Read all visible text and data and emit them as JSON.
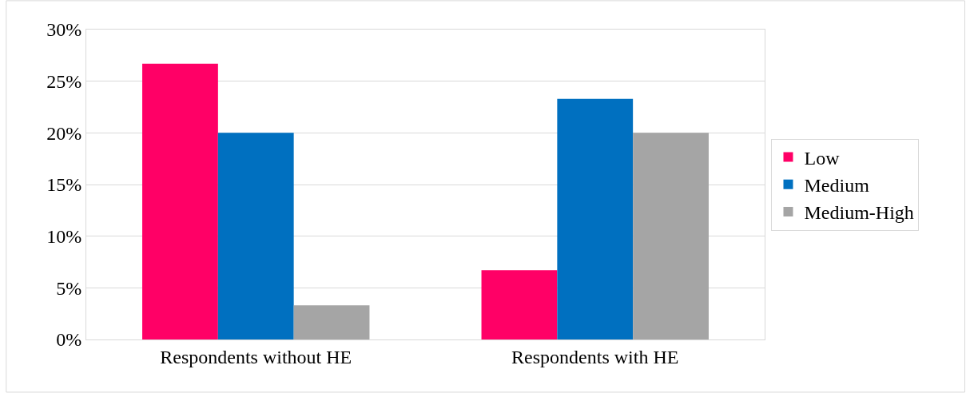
{
  "chart_data": {
    "type": "bar",
    "categories": [
      "Respondents without HE",
      "Respondents with HE"
    ],
    "series": [
      {
        "name": "Low",
        "color": "#ff0066",
        "values": [
          26.7,
          6.7
        ]
      },
      {
        "name": "Medium",
        "color": "#0070c0",
        "values": [
          20,
          23.3
        ]
      },
      {
        "name": "Medium-High",
        "color": "#a5a5a5",
        "values": [
          3.3,
          20
        ]
      }
    ],
    "ylim": [
      0,
      30
    ],
    "yticks": [
      {
        "value": 0,
        "label": "0%"
      },
      {
        "value": 5,
        "label": "5%"
      },
      {
        "value": 10,
        "label": "10%"
      },
      {
        "value": 15,
        "label": "15%"
      },
      {
        "value": 20,
        "label": "20%"
      },
      {
        "value": 25,
        "label": "25%"
      },
      {
        "value": 30,
        "label": "30%"
      }
    ],
    "grid": "y",
    "legend": "right"
  }
}
